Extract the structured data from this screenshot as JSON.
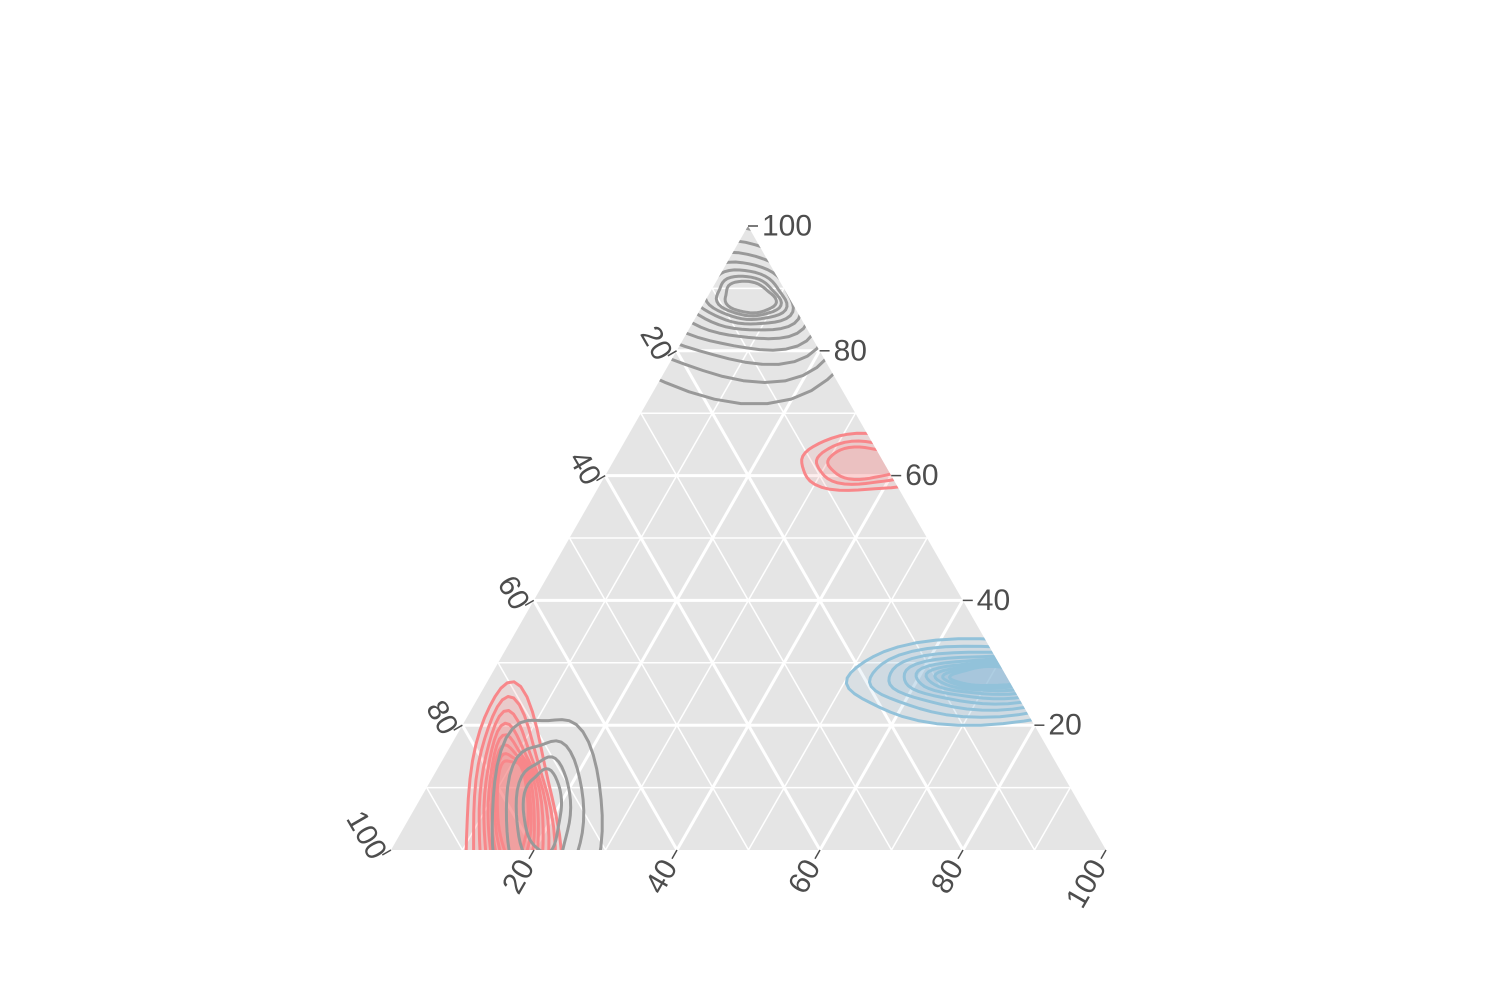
{
  "chart_data": {
    "type": "ternary-density-contour",
    "grid": true,
    "axes": [
      {
        "name": "top",
        "ticks": [
          20,
          40,
          60,
          80,
          100
        ],
        "tick_labels": [
          "20",
          "40",
          "60",
          "80",
          "100"
        ]
      },
      {
        "name": "left",
        "ticks": [
          20,
          40,
          60,
          80,
          100
        ],
        "tick_labels": [
          "20",
          "40",
          "60",
          "80",
          "100"
        ]
      },
      {
        "name": "right",
        "ticks": [
          20,
          40,
          60,
          80,
          100
        ],
        "tick_labels": [
          "20",
          "40",
          "60",
          "80",
          "100"
        ]
      }
    ],
    "series": [
      {
        "color": "#f8878a",
        "fill": true,
        "mode_center": [
          10,
          78,
          12
        ],
        "contour_count": 8
      },
      {
        "color": "#f8878a",
        "fill": true,
        "mode_center": [
          62,
          3,
          35
        ],
        "contour_count": 3
      },
      {
        "color": "#92c2da",
        "fill": true,
        "mode_center": [
          28,
          3,
          69
        ],
        "contour_count": 9
      },
      {
        "color": "#999999",
        "fill": false,
        "mode_center": [
          8,
          75,
          17
        ],
        "contour_count": 4
      },
      {
        "color": "#999999",
        "fill": false,
        "mode_center": [
          88,
          5,
          7
        ],
        "contour_count": 10
      }
    ]
  }
}
